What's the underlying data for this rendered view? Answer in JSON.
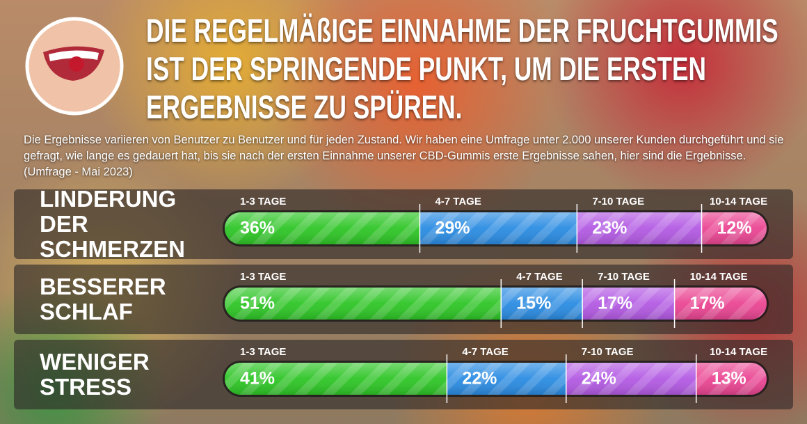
{
  "chart_data": {
    "type": "bar",
    "orientation": "horizontal",
    "stacked": true,
    "title": "DIE REGELMÄßIGE EINNAHME DER FRUCHTGUMMIS IST DER SPRINGENDE PUNKT, UM DIE ERSTEN ERGEBNISSE ZU SPÜREN.",
    "subtitle": "Die Ergebnisse variieren von Benutzer zu Benutzer und für jeden Zustand. Wir haben eine Umfrage unter 2.000 unserer Kunden durchgeführt und sie gefragt, wie lange es gedauert hat, bis sie nach der ersten Einnahme unserer CBD-Gummis erste Ergebnisse sahen, hier sind die Ergebnisse. (Umfrage - Mai 2023)",
    "categories": [
      "LINDERUNG DER SCHMERZEN",
      "BESSERER SCHLAF",
      "WENIGER STRESS"
    ],
    "series": [
      {
        "name": "1-3 TAGE",
        "color": "#2ec526",
        "values": [
          36,
          51,
          41
        ],
        "value_labels": [
          "36%",
          "51%",
          "41%"
        ]
      },
      {
        "name": "4-7 TAGE",
        "color": "#2b8ce2",
        "values": [
          29,
          15,
          22
        ],
        "value_labels": [
          "29%",
          "15%",
          "22%"
        ]
      },
      {
        "name": "7-10 TAGE",
        "color": "#b35ae3",
        "values": [
          23,
          17,
          24
        ],
        "value_labels": [
          "23%",
          "17%",
          "24%"
        ]
      },
      {
        "name": "10-14 TAGE",
        "color": "#ea4592",
        "values": [
          12,
          17,
          13
        ],
        "value_labels": [
          "12%",
          "17%",
          "13%"
        ]
      }
    ]
  }
}
